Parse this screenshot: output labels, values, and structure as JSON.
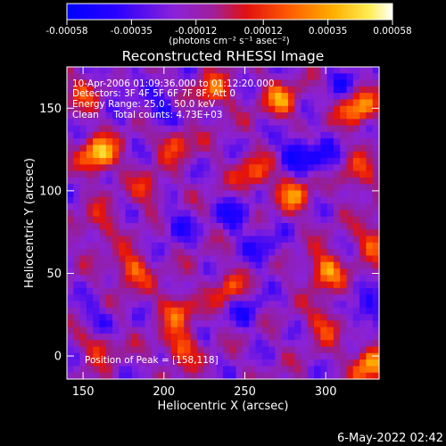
{
  "chart_data": {
    "type": "heatmap",
    "title": "Reconstructed RHESSI Image",
    "xlabel": "Heliocentric X (arcsec)",
    "ylabel": "Heliocentric Y (arcsec)",
    "xlim": [
      140,
      333
    ],
    "ylim": [
      -14,
      175
    ],
    "x_ticks": [
      150,
      200,
      250,
      300
    ],
    "y_ticks": [
      0,
      50,
      100,
      150
    ],
    "grid": false,
    "colorbar": {
      "location": "top",
      "range": [
        -0.00058,
        0.00058
      ],
      "tick_values": [
        -0.00058,
        -0.00035,
        -0.00012,
        0.00012,
        0.00035,
        0.00058
      ],
      "tick_labels": [
        "-0.00058",
        "-0.00035",
        "-0.00012",
        "0.00012",
        "0.00035",
        "0.00058"
      ],
      "units_label": "(photons cm⁻² s⁻¹ asec⁻²)",
      "colormap": "blue-purple-red-orange-yellow-white"
    },
    "annotations": {
      "time_range": "10-Apr-2006 01:09:36.000 to 01:12:20.000",
      "detectors": "Detectors: 3F 4F 5F 6F 7F 8F, Att 0",
      "energy": "Energy Range: 25.0 - 50.0 keV",
      "clean": "Clean     Total counts: 4.73E+03",
      "peak": "Position of Peak = [158,118]"
    },
    "peak_position": [
      158,
      118
    ],
    "hotspots": [
      {
        "x": 160,
        "y": 122,
        "v": 0.00056
      },
      {
        "x": 320,
        "y": 150,
        "v": 0.00046
      },
      {
        "x": 327,
        "y": -5,
        "v": 0.00048
      },
      {
        "x": 300,
        "y": 52,
        "v": 0.00042
      },
      {
        "x": 272,
        "y": 155,
        "v": 0.00036
      },
      {
        "x": 280,
        "y": 98,
        "v": 0.00034
      },
      {
        "x": 255,
        "y": 110,
        "v": 0.0003
      },
      {
        "x": 230,
        "y": 160,
        "v": 0.00032
      },
      {
        "x": 207,
        "y": 130,
        "v": 0.0003
      },
      {
        "x": 180,
        "y": 52,
        "v": 0.00034
      },
      {
        "x": 208,
        "y": 28,
        "v": 0.0003
      },
      {
        "x": 210,
        "y": 5,
        "v": 0.00032
      },
      {
        "x": 160,
        "y": 8,
        "v": 0.00028
      },
      {
        "x": 240,
        "y": 40,
        "v": 0.00026
      },
      {
        "x": 150,
        "y": 160,
        "v": 0.0002
      },
      {
        "x": 160,
        "y": 80,
        "v": 0.00018
      },
      {
        "x": 300,
        "y": 20,
        "v": 0.00026
      },
      {
        "x": 330,
        "y": 70,
        "v": 0.0003
      },
      {
        "x": 320,
        "y": 110,
        "v": 0.00024
      },
      {
        "x": 190,
        "y": 100,
        "v": 0.00018
      }
    ],
    "coldspots": [
      {
        "x": 282,
        "y": 124,
        "v": -0.0004
      },
      {
        "x": 200,
        "y": 147,
        "v": -0.00036
      },
      {
        "x": 245,
        "y": 85,
        "v": -0.00034
      },
      {
        "x": 160,
        "y": 20,
        "v": -0.00034
      },
      {
        "x": 325,
        "y": 25,
        "v": -0.00036
      },
      {
        "x": 298,
        "y": 118,
        "v": -0.0003
      },
      {
        "x": 208,
        "y": 80,
        "v": -0.00028
      },
      {
        "x": 262,
        "y": 65,
        "v": -0.00028
      },
      {
        "x": 250,
        "y": 28,
        "v": -0.0003
      },
      {
        "x": 310,
        "y": 165,
        "v": -0.00026
      },
      {
        "x": 175,
        "y": 165,
        "v": -0.00024
      }
    ]
  },
  "footer": {
    "date": "6-May-2022 02:42"
  }
}
